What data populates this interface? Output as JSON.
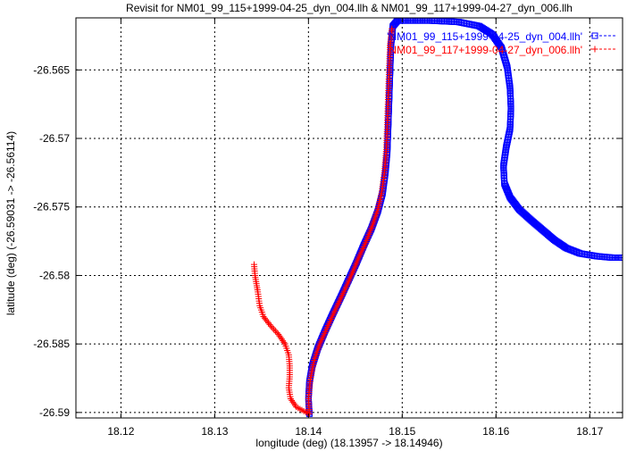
{
  "chart_data": {
    "type": "line",
    "title": "Revisit for NM01_99_115+1999-04-25_dyn_004.llh & NM01_99_117+1999-04-27_dyn_006.llh",
    "xlabel": "longitude (deg) (18.13957 -> 18.14946)",
    "ylabel": "latitude (deg) (-26.59031 -> -26.56114)",
    "xlim": [
      18.1152,
      18.1735
    ],
    "ylim": [
      -26.5904,
      -26.5612
    ],
    "x_ticks": [
      "18.12",
      "18.13",
      "18.14",
      "18.15",
      "18.16",
      "18.17"
    ],
    "x_tick_values": [
      18.12,
      18.13,
      18.14,
      18.15,
      18.16,
      18.17
    ],
    "y_ticks": [
      "-26.565",
      "-26.57",
      "-26.575",
      "-26.58",
      "-26.585",
      "-26.59"
    ],
    "y_tick_values": [
      -26.565,
      -26.57,
      -26.575,
      -26.58,
      -26.585,
      -26.59
    ],
    "grid": true,
    "legend_position": "top-right",
    "series": [
      {
        "name": "'NM01_99_115+1999-04-25_dyn_004.llh'",
        "color": "#0000ff",
        "marker": "square",
        "points": [
          [
            18.1401,
            -26.5901
          ],
          [
            18.14,
            -26.589
          ],
          [
            18.1401,
            -26.5878
          ],
          [
            18.1404,
            -26.5866
          ],
          [
            18.141,
            -26.5853
          ],
          [
            18.1418,
            -26.584
          ],
          [
            18.1426,
            -26.5828
          ],
          [
            18.1435,
            -26.5815
          ],
          [
            18.1443,
            -26.5803
          ],
          [
            18.1451,
            -26.5791
          ],
          [
            18.1459,
            -26.5778
          ],
          [
            18.1467,
            -26.5766
          ],
          [
            18.1474,
            -26.5753
          ],
          [
            18.1479,
            -26.574
          ],
          [
            18.1482,
            -26.5725
          ],
          [
            18.1484,
            -26.571
          ],
          [
            18.1485,
            -26.5692
          ],
          [
            18.1486,
            -26.5672
          ],
          [
            18.1487,
            -26.5652
          ],
          [
            18.1488,
            -26.5632
          ],
          [
            18.149,
            -26.5618
          ],
          [
            18.1495,
            -26.5614
          ],
          [
            18.153,
            -26.5614
          ],
          [
            18.156,
            -26.5615
          ],
          [
            18.1582,
            -26.5618
          ],
          [
            18.1596,
            -26.5624
          ],
          [
            18.1606,
            -26.5634
          ],
          [
            18.1612,
            -26.5648
          ],
          [
            18.1615,
            -26.5663
          ],
          [
            18.1616,
            -26.5678
          ],
          [
            18.1615,
            -26.5693
          ],
          [
            18.1611,
            -26.5706
          ],
          [
            18.1608,
            -26.572
          ],
          [
            18.1609,
            -26.5733
          ],
          [
            18.1615,
            -26.5743
          ],
          [
            18.1625,
            -26.5752
          ],
          [
            18.1638,
            -26.576
          ],
          [
            18.165,
            -26.5767
          ],
          [
            18.1662,
            -26.5774
          ],
          [
            18.1675,
            -26.578
          ],
          [
            18.169,
            -26.5784
          ],
          [
            18.1708,
            -26.5786
          ],
          [
            18.1724,
            -26.5787
          ],
          [
            18.1735,
            -26.5787
          ]
        ]
      },
      {
        "name": "'NM01_99_117+1999-04-27_dyn_006.llh'",
        "color": "#ff0000",
        "marker": "plus",
        "points": [
          [
            18.1342,
            -26.5792
          ],
          [
            18.1343,
            -26.58
          ],
          [
            18.1346,
            -26.5812
          ],
          [
            18.1348,
            -26.5822
          ],
          [
            18.1352,
            -26.583
          ],
          [
            18.136,
            -26.5837
          ],
          [
            18.1368,
            -26.5843
          ],
          [
            18.1375,
            -26.585
          ],
          [
            18.1379,
            -26.5858
          ],
          [
            18.138,
            -26.5866
          ],
          [
            18.138,
            -26.5874
          ],
          [
            18.1379,
            -26.5882
          ],
          [
            18.1381,
            -26.589
          ],
          [
            18.1387,
            -26.5896
          ],
          [
            18.1395,
            -26.5899
          ],
          [
            18.1401,
            -26.5901
          ],
          [
            18.14,
            -26.589
          ],
          [
            18.1402,
            -26.5876
          ],
          [
            18.1406,
            -26.5862
          ],
          [
            18.1412,
            -26.585
          ],
          [
            18.142,
            -26.5838
          ],
          [
            18.1428,
            -26.5826
          ],
          [
            18.1437,
            -26.5813
          ],
          [
            18.1445,
            -26.5801
          ],
          [
            18.1453,
            -26.5788
          ],
          [
            18.1461,
            -26.5776
          ],
          [
            18.1468,
            -26.5764
          ],
          [
            18.1474,
            -26.5752
          ],
          [
            18.1478,
            -26.574
          ],
          [
            18.1481,
            -26.5725
          ],
          [
            18.1483,
            -26.5708
          ],
          [
            18.1484,
            -26.569
          ],
          [
            18.1485,
            -26.567
          ],
          [
            18.1486,
            -26.565
          ],
          [
            18.1487,
            -26.5632
          ],
          [
            18.1489,
            -26.562
          ]
        ]
      }
    ]
  }
}
